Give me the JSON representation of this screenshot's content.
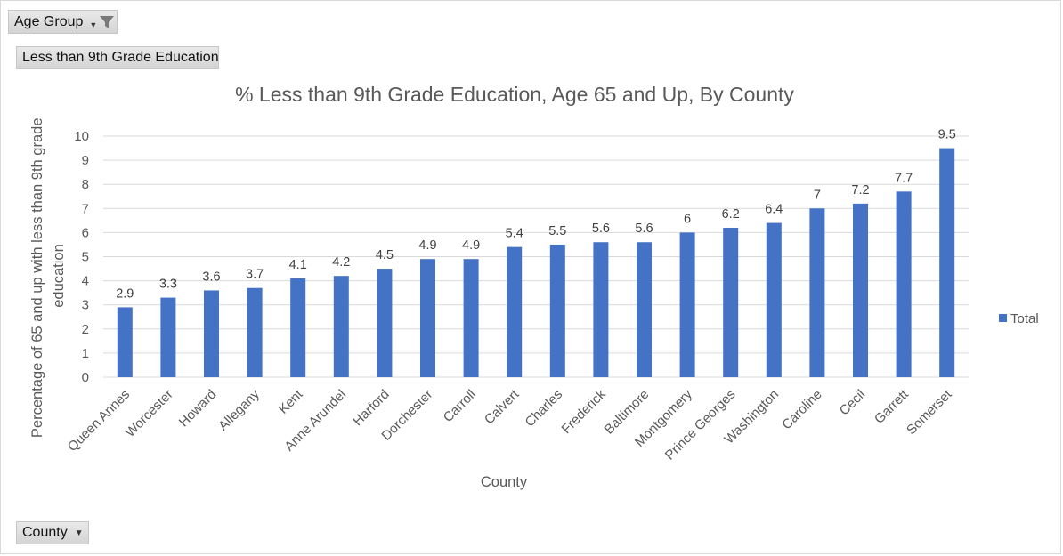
{
  "filters": {
    "age_group_label": "Age Group",
    "measure_label": "Less than 9th Grade Education",
    "county_label": "County"
  },
  "colors": {
    "bar": "#4472c4",
    "grid": "#d9d9d9",
    "text": "#595959"
  },
  "icons": {
    "age_group_filter": "filter-funnel-icon",
    "age_group_dropdown": "dropdown-arrow-icon",
    "county_dropdown": "dropdown-arrow-icon"
  },
  "chart_data": {
    "type": "bar",
    "title": "% Less than 9th Grade Education, Age 65 and Up, By County",
    "xlabel": "County",
    "ylabel_lines": [
      "Percentage of 65 and up with less than 9th  grade",
      "education"
    ],
    "ylim": [
      0,
      10
    ],
    "yticks": [
      0,
      1,
      2,
      3,
      4,
      5,
      6,
      7,
      8,
      9,
      10
    ],
    "grid": true,
    "legend_position": "right",
    "categories": [
      "Queen Annes",
      "Worcester",
      "Howard",
      "Allegany",
      "Kent",
      "Anne Arundel",
      "Harford",
      "Dorchester",
      "Carroll",
      "Calvert",
      "Charles",
      "Frederick",
      "Baltimore",
      "Montgomery",
      "Prince Georges",
      "Washington",
      "Caroline",
      "Cecil",
      "Garrett",
      "Somerset"
    ],
    "series": [
      {
        "name": "Total",
        "values": [
          2.9,
          3.3,
          3.6,
          3.7,
          4.1,
          4.2,
          4.5,
          4.9,
          4.9,
          5.4,
          5.5,
          5.6,
          5.6,
          6,
          6.2,
          6.4,
          7,
          7.2,
          7.7,
          9.5
        ]
      }
    ]
  }
}
